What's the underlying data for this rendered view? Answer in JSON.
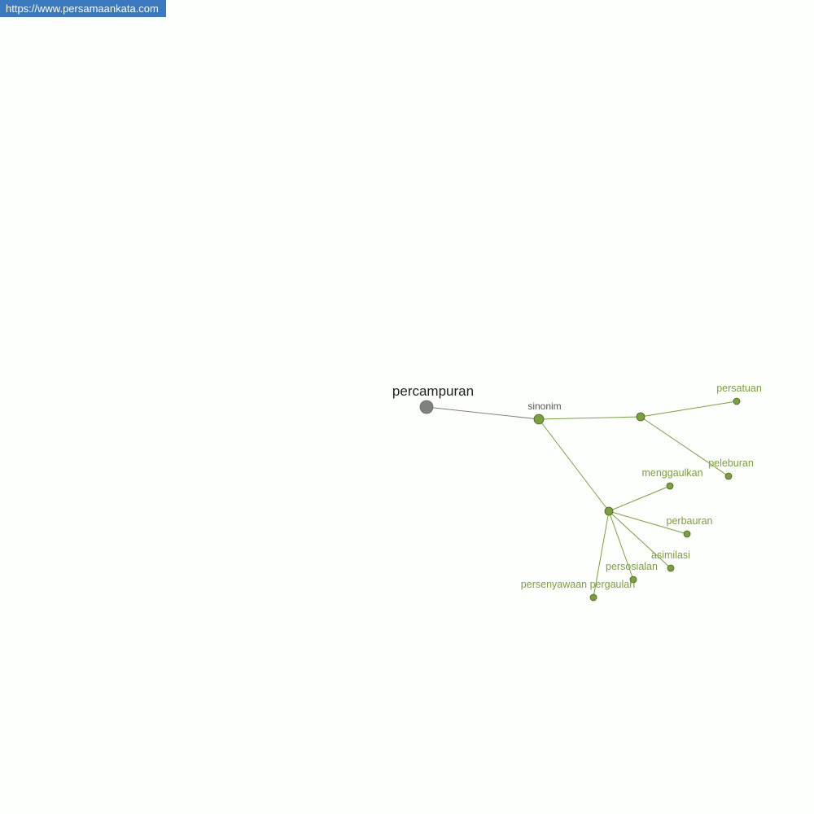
{
  "watermark": {
    "url": "https://www.persamaankata.com"
  },
  "colors": {
    "root": "#808080",
    "node": "#7aa03a",
    "label": "#7aa03a",
    "edge_root": "#808080",
    "edge": "#7aa03a",
    "node_stroke": "#4a6030"
  },
  "graph": {
    "nodes": [
      {
        "id": "root",
        "label": "percampuran",
        "type": "root"
      },
      {
        "id": "sinonim",
        "label": "sinonim",
        "type": "relation"
      },
      {
        "id": "hub1",
        "label": "",
        "type": "group"
      },
      {
        "id": "hub2",
        "label": "",
        "type": "group"
      },
      {
        "id": "persatuan",
        "label": "persatuan",
        "type": "word"
      },
      {
        "id": "peleburan",
        "label": "peleburan",
        "type": "word"
      },
      {
        "id": "menggaulkan",
        "label": "menggaulkan",
        "type": "word"
      },
      {
        "id": "perbauran",
        "label": "perbauran",
        "type": "word"
      },
      {
        "id": "asimilasi",
        "label": "asimilasi",
        "type": "word"
      },
      {
        "id": "persosialan",
        "label": "persosialan",
        "type": "word"
      },
      {
        "id": "persenyawaan_pergaulan",
        "label": "persenyawaan pergaulan",
        "type": "word"
      }
    ],
    "edges": [
      [
        "root",
        "sinonim"
      ],
      [
        "sinonim",
        "hub1"
      ],
      [
        "sinonim",
        "hub2"
      ],
      [
        "hub1",
        "persatuan"
      ],
      [
        "hub1",
        "peleburan"
      ],
      [
        "hub2",
        "menggaulkan"
      ],
      [
        "hub2",
        "perbauran"
      ],
      [
        "hub2",
        "asimilasi"
      ],
      [
        "hub2",
        "persosialan"
      ],
      [
        "hub2",
        "persenyawaan_pergaulan"
      ]
    ]
  }
}
